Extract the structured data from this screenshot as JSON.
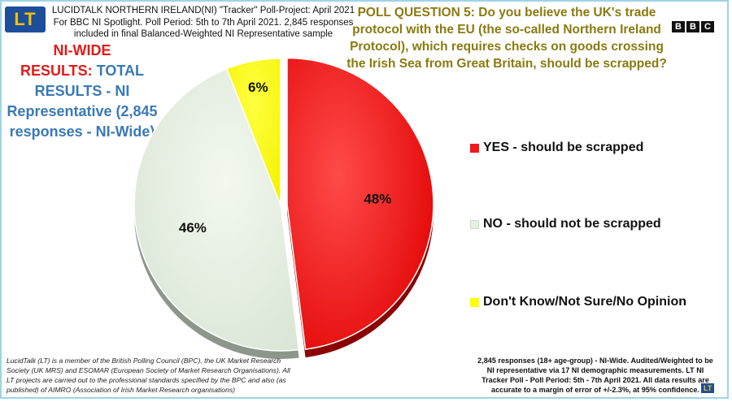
{
  "header": {
    "logo_text": "LT",
    "title_line1": "LUCIDTALK NORTHERN IRELAND(NI) \"Tracker\" Poll-Project: April 2021",
    "title_line2": "For BBC NI Spotlight. Poll Period: 5th to 7th April 2021. 2,845 responses",
    "title_line3": "included in final Balanced-Weighted NI Representative sample"
  },
  "question": "POLL QUESTION 5: Do you believe the UK's trade protocol with the EU (the so-called Northern Ireland Protocol), which requires checks on goods crossing the Irish Sea from Great Britain, should be scrapped?",
  "bbc": [
    "B",
    "B",
    "C"
  ],
  "results_label": {
    "part1": "NI-WIDE",
    "part2": "RESULTS:",
    "part3": " TOTAL RESULTS - NI Representative (2,845 responses - NI-Wide)"
  },
  "chart_data": {
    "type": "pie",
    "title": "",
    "slices": [
      {
        "label": "YES - should be scrapped",
        "value": 48,
        "value_label": "48%",
        "color": "#f01a1a"
      },
      {
        "label": "NO - should not be scrapped",
        "value": 46,
        "value_label": "46%",
        "color": "#e6f0e2"
      },
      {
        "label": "Don't Know/Not Sure/No Opinion",
        "value": 6,
        "value_label": "6%",
        "color": "#ffff00"
      }
    ],
    "legend_position": "right"
  },
  "footer": {
    "left": "LucidTalk (LT) is a member of the British Polling Council (BPC), the UK Market Research Society (UK MRS) and ESOMAR (European Society of Market Research Organisations). All LT projects are carried out to the professional standards specified by the BPC and also (as published) of AIMRO (Association of Irish Market Research organisations)",
    "right": "2,845 responses (18+ age-group) - NI-Wide. Audited/Weighted to be NI representative via 17 NI demographic measurements. LT NI Tracker Poll - Poll Period: 5th - 7th April 2021. All data results are accurate to a margin of error of +/-2.3%, at 95% confidence.",
    "mark": "LT"
  }
}
